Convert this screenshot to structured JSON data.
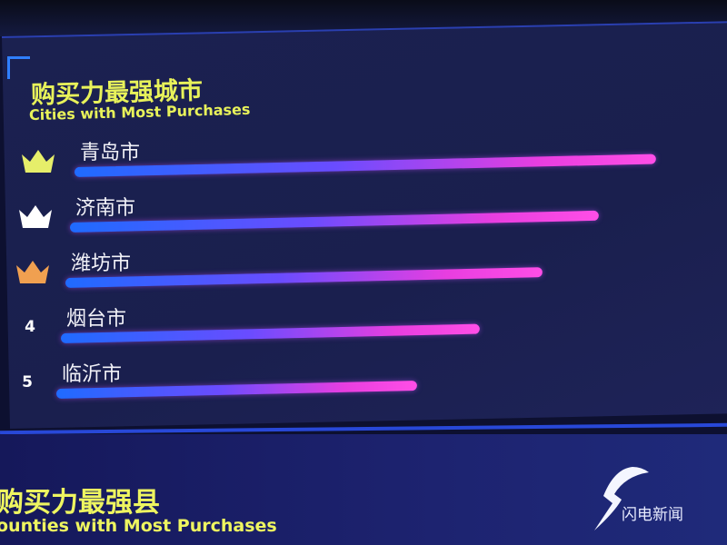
{
  "chart_data": {
    "type": "bar",
    "orientation": "horizontal",
    "title": "购买力最强城市",
    "subtitle": "Cities with Most Purchases",
    "categories": [
      "青岛市",
      "济南市",
      "潍坊市",
      "烟台市",
      "临沂市"
    ],
    "ranks": [
      "crown-gold",
      "crown-silver",
      "crown-bronze",
      "4",
      "5"
    ],
    "relative_values_percent": [
      100,
      91,
      82,
      72,
      62
    ],
    "bar_gradient": [
      "#1f6bff",
      "#ff4ee6"
    ],
    "grid": false
  },
  "next_section": {
    "title": "购买力最强县",
    "subtitle": "ounties with Most Purchases"
  },
  "watermark": {
    "text": "闪电新闻"
  },
  "colors": {
    "title": "#e8f25a",
    "background": "#1a1f4e",
    "gold": "#e6ee6a",
    "silver": "#ffffff",
    "bronze": "#f0a050"
  }
}
